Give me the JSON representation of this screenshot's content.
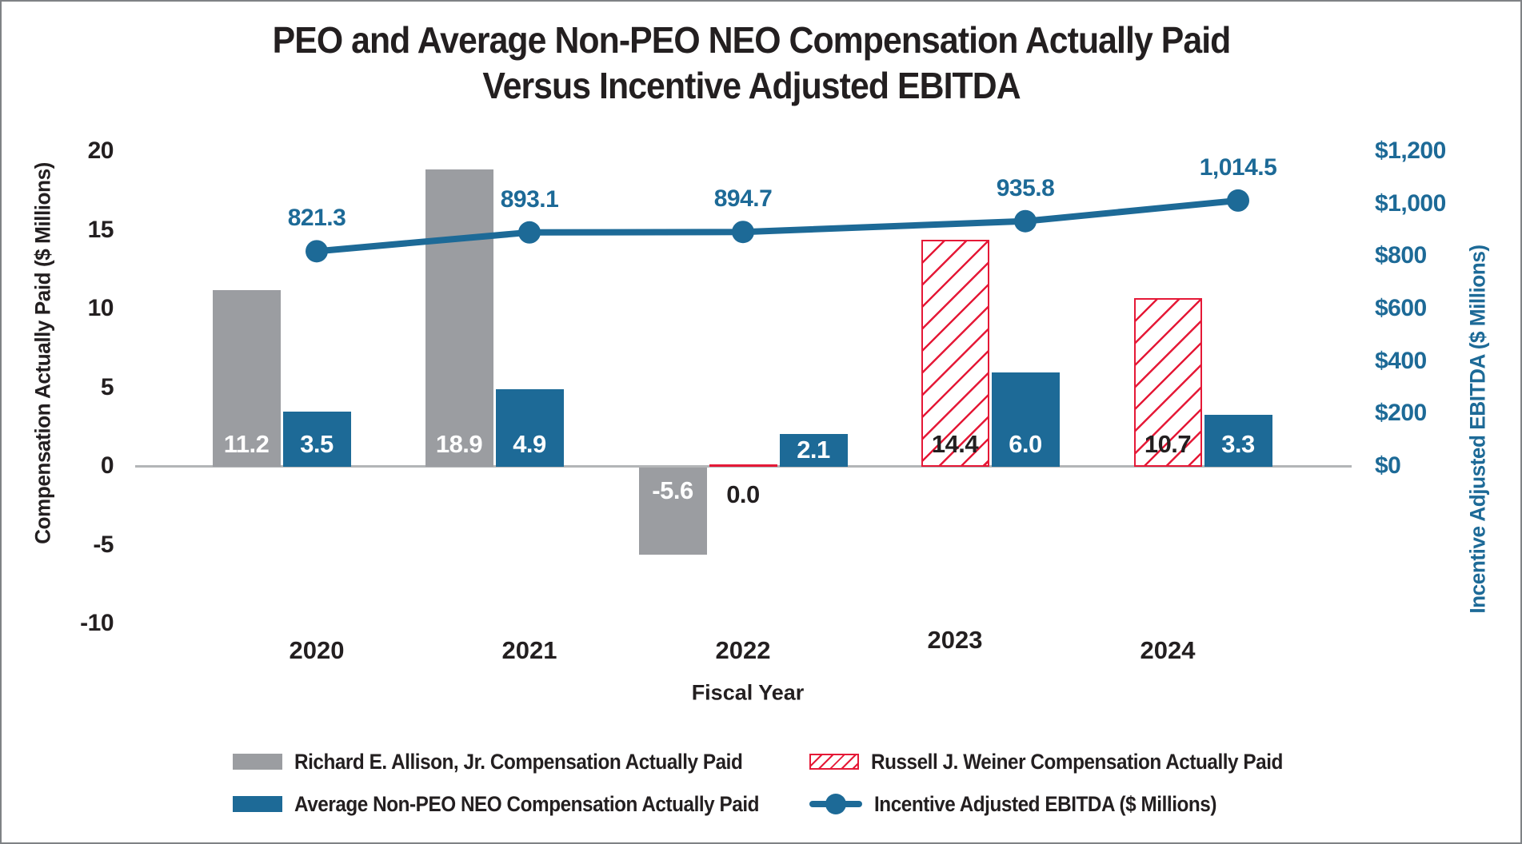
{
  "title": {
    "line1": "PEO and Average Non-PEO NEO Compensation Actually Paid",
    "line2": "Versus Incentive Adjusted EBITDA"
  },
  "axes": {
    "left": {
      "title": "Compensation Actually Paid ($ Millions)",
      "ticks": [
        {
          "value": 20,
          "label": "20"
        },
        {
          "value": 15,
          "label": "15"
        },
        {
          "value": 10,
          "label": "10"
        },
        {
          "value": 5,
          "label": "5"
        },
        {
          "value": 0,
          "label": "0"
        },
        {
          "value": -5,
          "label": "-5"
        },
        {
          "value": -10,
          "label": "-10"
        }
      ]
    },
    "right": {
      "title": "Incentive Adjusted EBITDA ($ Millions)",
      "ticks": [
        {
          "value": 1200,
          "label": "$1,200"
        },
        {
          "value": 1000,
          "label": "$1,000"
        },
        {
          "value": 800,
          "label": "$800"
        },
        {
          "value": 600,
          "label": "$600"
        },
        {
          "value": 400,
          "label": "$400"
        },
        {
          "value": 200,
          "label": "$200"
        },
        {
          "value": 0,
          "label": "$0"
        }
      ]
    },
    "x": {
      "title": "Fiscal Year",
      "categories": [
        "2020",
        "2021",
        "2022",
        "2023",
        "2024"
      ]
    }
  },
  "chart_data": {
    "type": "combo bar+line (dual axis)",
    "categories": [
      "2020",
      "2021",
      "2022",
      "2023",
      "2024"
    ],
    "series": [
      {
        "name": "Richard E. Allison, Jr. Compensation Actually Paid",
        "type": "bar",
        "style": "solid",
        "color": "#9b9da1",
        "axis": "left",
        "values": [
          11.2,
          18.9,
          -5.6,
          null,
          null
        ],
        "labels": [
          "11.2",
          "18.9",
          "-5.6",
          null,
          null
        ]
      },
      {
        "name": "Russell J. Weiner Compensation Actually Paid",
        "type": "bar",
        "style": "hatched",
        "color": "#e51937",
        "axis": "left",
        "values": [
          null,
          null,
          0.0,
          14.4,
          10.7
        ],
        "labels": [
          null,
          null,
          "0.0",
          "14.4",
          "10.7"
        ]
      },
      {
        "name": "Average Non-PEO NEO Compensation Actually Paid",
        "type": "bar",
        "style": "solid",
        "color": "#1d6a97",
        "axis": "left",
        "values": [
          3.5,
          4.9,
          2.1,
          6.0,
          3.3
        ],
        "labels": [
          "3.5",
          "4.9",
          "2.1",
          "6.0",
          "3.3"
        ]
      },
      {
        "name": "Incentive Adjusted EBITDA ($ Millions)",
        "type": "line",
        "color": "#1d6a97",
        "axis": "right",
        "values": [
          821.3,
          893.1,
          894.7,
          935.8,
          1014.5
        ],
        "labels": [
          "821.3",
          "893.1",
          "894.7",
          "935.8",
          "1,014.5"
        ]
      }
    ],
    "left_ylim": [
      -10,
      20
    ],
    "right_ylim": [
      0,
      1200
    ],
    "grid": false,
    "legend_position": "bottom"
  },
  "legend": {
    "items": [
      {
        "label": "Richard E. Allison, Jr. Compensation Actually Paid",
        "swatch": "gray-bar"
      },
      {
        "label": "Russell J. Weiner Compensation Actually Paid",
        "swatch": "red-hatched-bar"
      },
      {
        "label": "Average Non-PEO NEO Compensation Actually Paid",
        "swatch": "blue-bar"
      },
      {
        "label": "Incentive Adjusted EBITDA ($ Millions)",
        "swatch": "blue-line-marker"
      }
    ]
  },
  "colors": {
    "blue": "#1d6a97",
    "gray": "#9b9da1",
    "red": "#e51937",
    "text": "#231f20",
    "axis_line": "#b3b5b7",
    "background": "#ffffff",
    "border": "#7f8285"
  }
}
